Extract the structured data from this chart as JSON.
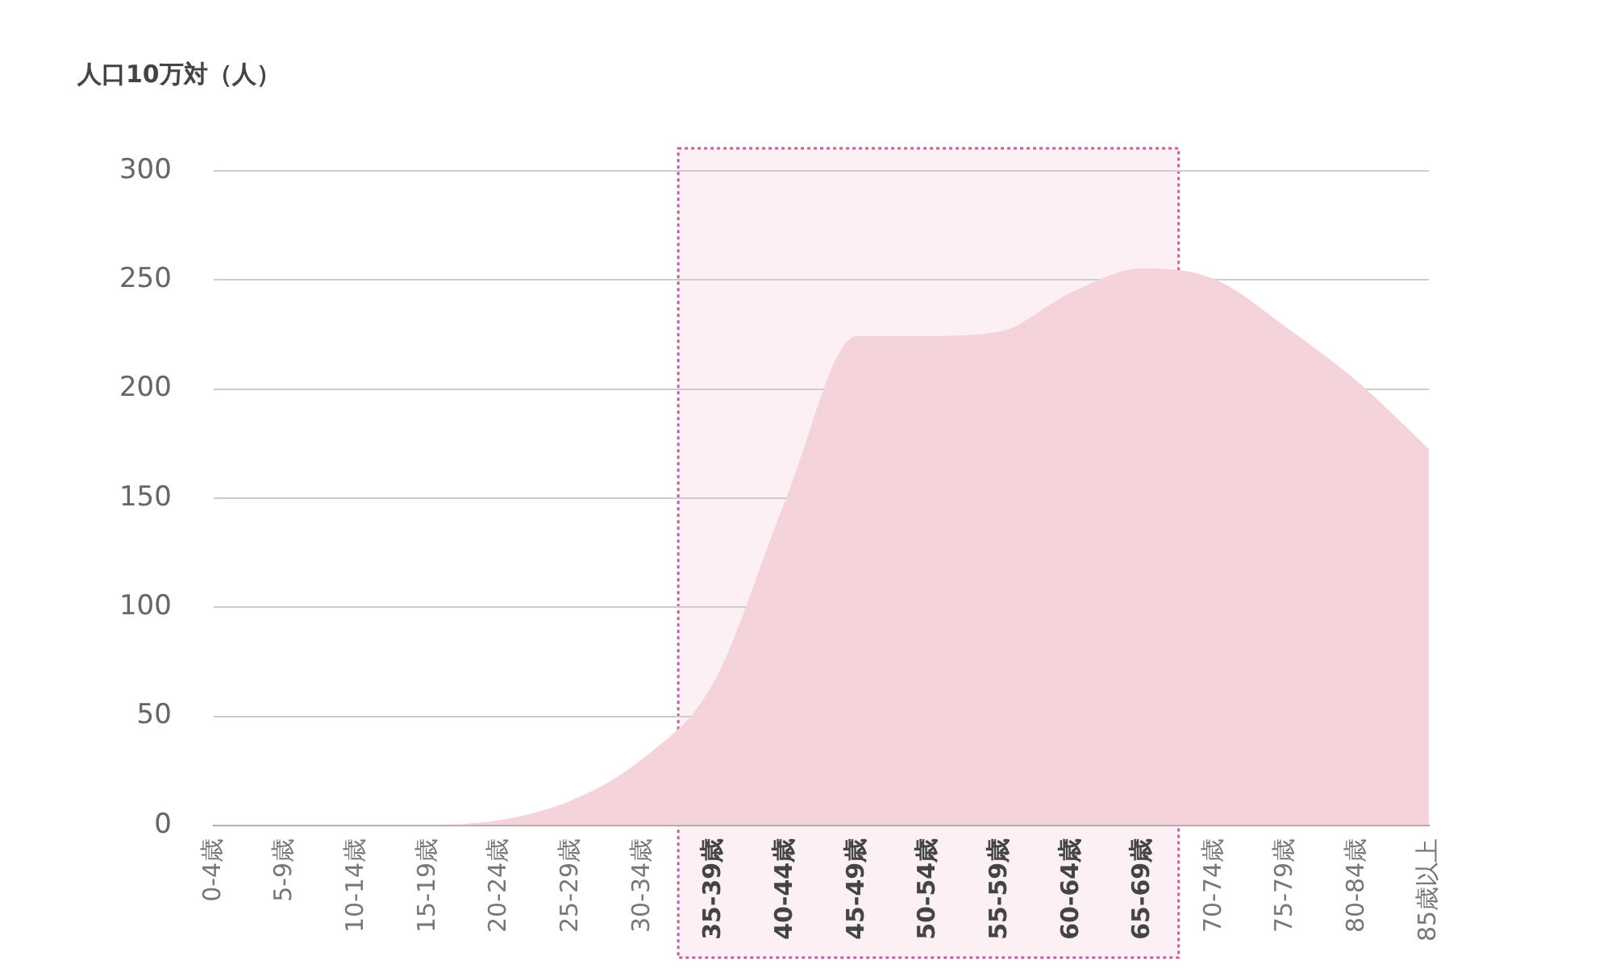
{
  "chart_data": {
    "type": "area",
    "ylabel": "人口10万対（人）",
    "categories": [
      "0-4歳",
      "5-9歳",
      "10-14歳",
      "15-19歳",
      "20-24歳",
      "25-29歳",
      "30-34歳",
      "35-39歳",
      "40-44歳",
      "45-49歳",
      "50-54歳",
      "55-59歳",
      "60-64歳",
      "65-69歳",
      "70-74歳",
      "75-79歳",
      "80-84歳",
      "85歳以上"
    ],
    "values": [
      0,
      0,
      0,
      0,
      2,
      11,
      30,
      65,
      148,
      224,
      224,
      226,
      244,
      255,
      250,
      228,
      203,
      172
    ],
    "color": "#f5d3da",
    "ylim": [
      0,
      300
    ],
    "yticks": [
      0,
      50,
      100,
      150,
      200,
      250,
      300
    ],
    "grid": "y",
    "legend": false,
    "bands": [
      {
        "axis": "x",
        "from": "35-39歳",
        "to": "65-69歳",
        "color": "#fbe9ef"
      }
    ]
  }
}
